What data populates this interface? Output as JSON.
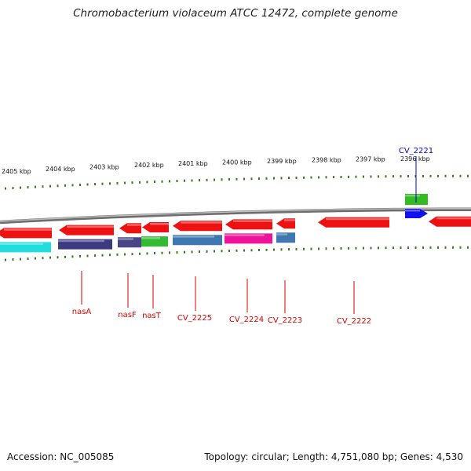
{
  "title": "Chromobacterium violaceum ATCC 12472, complete genome",
  "footer": {
    "accession": "Accession: NC_005085",
    "stats": "Topology: circular; Length: 4,751,080 bp; Genes: 4,530"
  },
  "colors": {
    "tick": "#3a7a1a",
    "gene_label": "#dd0000",
    "selected_label": "#0000cc",
    "backbone": "#8a8a8a"
  },
  "ruler": {
    "labels": [
      "2405 kbp",
      "2404 kbp",
      "2403 kbp",
      "2402 kbp",
      "2401 kbp",
      "2400 kbp",
      "2399 kbp",
      "2398 kbp",
      "2397 kbp",
      "2396 kbp"
    ]
  },
  "tracks": {
    "forward": [
      {
        "id": "cv2221-f1",
        "color": "#33bb22"
      },
      {
        "id": "cv2221-f2",
        "color": "#1111ee",
        "arrow": true
      }
    ],
    "reverse": [
      {
        "id": "r1",
        "color": "#ee1111"
      },
      {
        "id": "r2",
        "color": "#ee1111"
      },
      {
        "id": "r3",
        "color": "#ee1111"
      },
      {
        "id": "r4",
        "color": "#ee1111"
      },
      {
        "id": "r5",
        "color": "#ee1111"
      },
      {
        "id": "r6",
        "color": "#ee1111"
      },
      {
        "id": "r7",
        "color": "#ee1111"
      },
      {
        "id": "r8",
        "color": "#ee1111"
      },
      {
        "id": "r9",
        "color": "#ee1111"
      }
    ],
    "cog": [
      {
        "id": "c1",
        "color": "#22dddd"
      },
      {
        "id": "c2",
        "color": "#3d3a80"
      },
      {
        "id": "c3",
        "color": "#4a4585"
      },
      {
        "id": "c4",
        "color": "#33bb33"
      },
      {
        "id": "c5",
        "color": "#3f78b0"
      },
      {
        "id": "c6",
        "color": "#ee1199"
      },
      {
        "id": "c7",
        "color": "#3f78b0"
      }
    ]
  },
  "gene_labels": [
    {
      "name": "CV_2221",
      "selected": true
    },
    {
      "name": "nasA"
    },
    {
      "name": "nasF"
    },
    {
      "name": "nasT"
    },
    {
      "name": "CV_2225"
    },
    {
      "name": "CV_2224"
    },
    {
      "name": "CV_2223"
    },
    {
      "name": "CV_2222"
    }
  ]
}
